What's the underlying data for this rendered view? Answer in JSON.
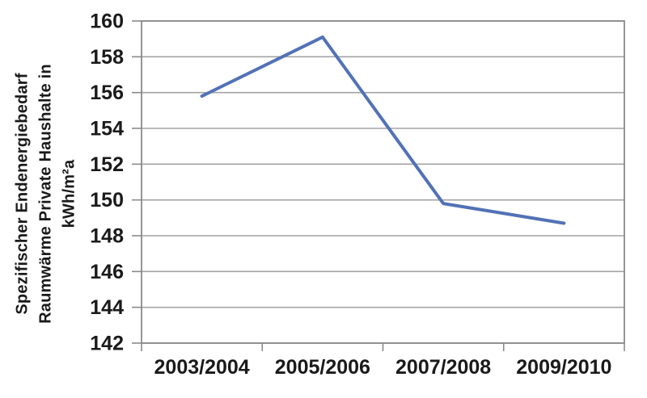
{
  "chart_data": {
    "type": "line",
    "title": "",
    "categories": [
      "2003/2004",
      "2005/2006",
      "2007/2008",
      "2009/2010"
    ],
    "values": [
      155.8,
      159.1,
      149.8,
      148.7
    ],
    "xlabel": "",
    "ylabel": "Spezifischer Endenergiebedarf Raumwärme Private Haushalte in kWh/m²a",
    "ylabel_lines": [
      "Spezifischer Endenergiebedarf",
      "Raumwärme Private Haushalte in",
      "kWh/m²a"
    ],
    "ylim": [
      142,
      160
    ],
    "ytick_step": 2,
    "grid": true,
    "legend_position": "none",
    "line_color": "#5272B7",
    "grid_color": "#A3A3A3",
    "axis_color": "#8A8A8A",
    "text_color": "#1A1A1A",
    "background_color": "#FFFFFF"
  }
}
